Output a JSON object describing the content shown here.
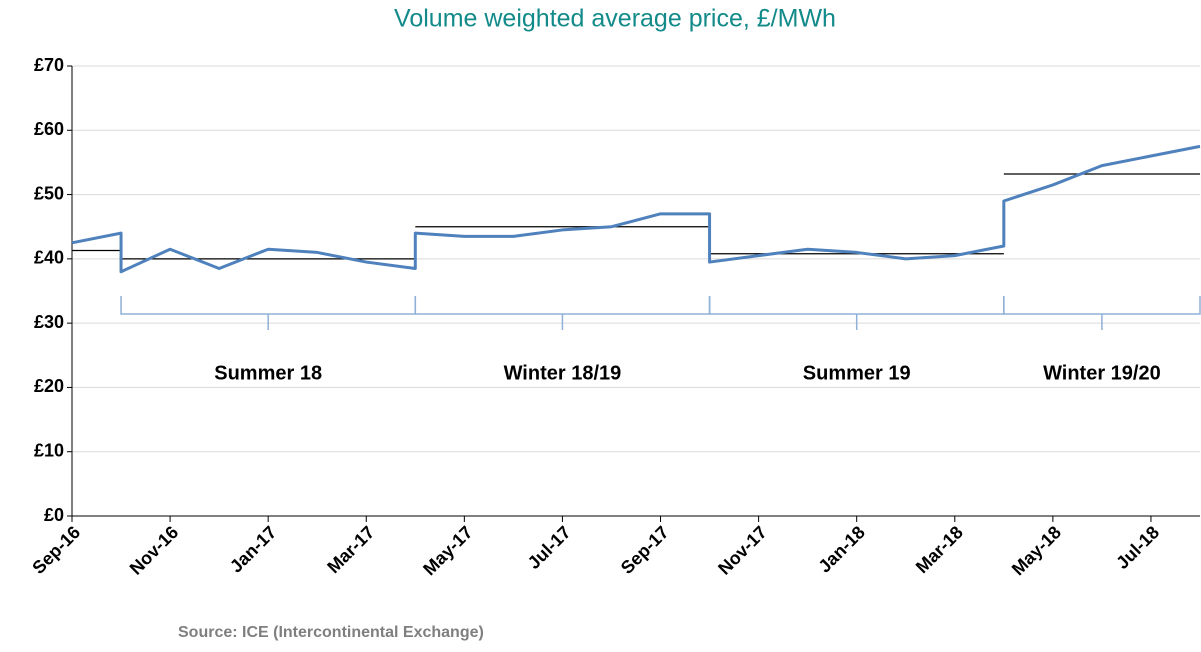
{
  "chart_data": {
    "type": "line",
    "title": "Volume weighted average price, £/MWh",
    "source": "Source: ICE (Intercontinental Exchange)",
    "x": [
      "2016-09",
      "2016-10",
      "2016-10",
      "2016-11",
      "2016-12",
      "2017-01",
      "2017-02",
      "2017-03",
      "2017-04",
      "2017-04",
      "2017-05",
      "2017-06",
      "2017-07",
      "2017-08",
      "2017-09",
      "2017-10",
      "2017-10",
      "2017-11",
      "2017-12",
      "2018-01",
      "2018-02",
      "2018-03",
      "2018-04",
      "2018-04",
      "2018-05",
      "2018-06",
      "2018-07",
      "2018-08"
    ],
    "series": [
      {
        "name": "Volume weighted average price",
        "color": "#4f81bd",
        "values": [
          42.5,
          44,
          38,
          41.5,
          38.5,
          41.5,
          41,
          39.5,
          38.5,
          44,
          43.5,
          43.5,
          44.5,
          45,
          47,
          47,
          39.5,
          40.5,
          41.5,
          41,
          40,
          40.5,
          42,
          49,
          51.5,
          54.5,
          56,
          57.5
        ]
      }
    ],
    "averages": [
      {
        "start": "2016-09",
        "end": "2016-10",
        "value": 41.3
      },
      {
        "start": "2016-10",
        "end": "2017-04",
        "value": 40
      },
      {
        "start": "2017-04",
        "end": "2017-10",
        "value": 45
      },
      {
        "start": "2017-10",
        "end": "2018-04",
        "value": 40.8
      },
      {
        "start": "2018-04",
        "end": "2018-08",
        "value": 53.2
      }
    ],
    "periods": [
      {
        "label": "Summer 18",
        "start": "2016-10",
        "end": "2017-04"
      },
      {
        "label": "Winter 18/19",
        "start": "2017-04",
        "end": "2017-10"
      },
      {
        "label": "Summer 19",
        "start": "2017-10",
        "end": "2018-04"
      },
      {
        "label": "Winter 19/20",
        "start": "2018-04",
        "end": "2018-08"
      }
    ],
    "xlim": [
      "2016-09",
      "2018-08"
    ],
    "xticks": [
      {
        "value": "2016-09",
        "label": "Sep-16"
      },
      {
        "value": "2016-11",
        "label": "Nov-16"
      },
      {
        "value": "2017-01",
        "label": "Jan-17"
      },
      {
        "value": "2017-03",
        "label": "Mar-17"
      },
      {
        "value": "2017-05",
        "label": "May-17"
      },
      {
        "value": "2017-07",
        "label": "Jul-17"
      },
      {
        "value": "2017-09",
        "label": "Sep-17"
      },
      {
        "value": "2017-11",
        "label": "Nov-17"
      },
      {
        "value": "2018-01",
        "label": "Jan-18"
      },
      {
        "value": "2018-03",
        "label": "Mar-18"
      },
      {
        "value": "2018-05",
        "label": "May-18"
      },
      {
        "value": "2018-07",
        "label": "Jul-18"
      }
    ],
    "ylim": [
      0,
      70
    ],
    "yticks": [
      {
        "value": 0,
        "label": "£0"
      },
      {
        "value": 10,
        "label": "£10"
      },
      {
        "value": 20,
        "label": "£20"
      },
      {
        "value": 30,
        "label": "£30"
      },
      {
        "value": 40,
        "label": "£40"
      },
      {
        "value": 50,
        "label": "£50"
      },
      {
        "value": 60,
        "label": "£60"
      },
      {
        "value": 70,
        "label": "£70"
      }
    ],
    "grid": true
  }
}
